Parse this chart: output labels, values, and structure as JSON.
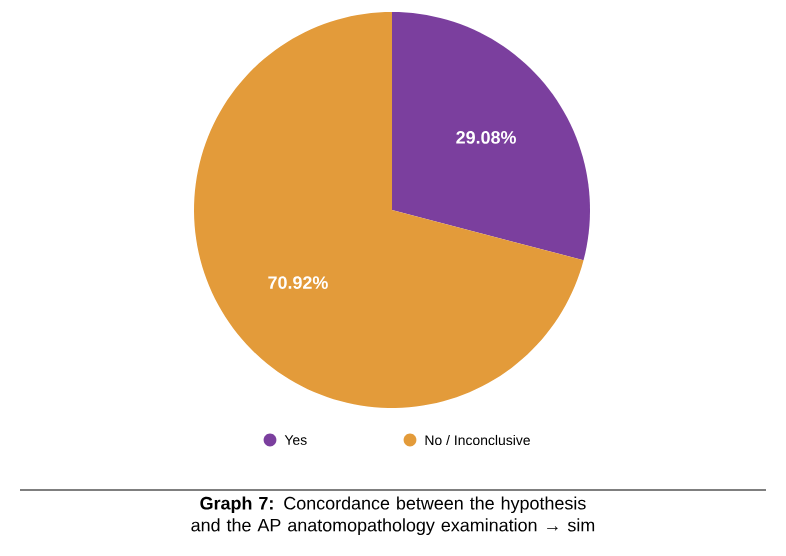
{
  "chart_data": {
    "type": "pie",
    "title": "**Graph 7:** Concordance between the hypothesis and the AP anatomopathology examination → sim",
    "categories": [
      "Yes",
      "No / Inconclusive"
    ],
    "values": [
      29.08,
      70.92
    ],
    "colors": [
      "#7b3f9e",
      "#e39b3a"
    ],
    "value_labels": [
      "29.08%",
      "70.92%"
    ],
    "legend": "bottom"
  }
}
